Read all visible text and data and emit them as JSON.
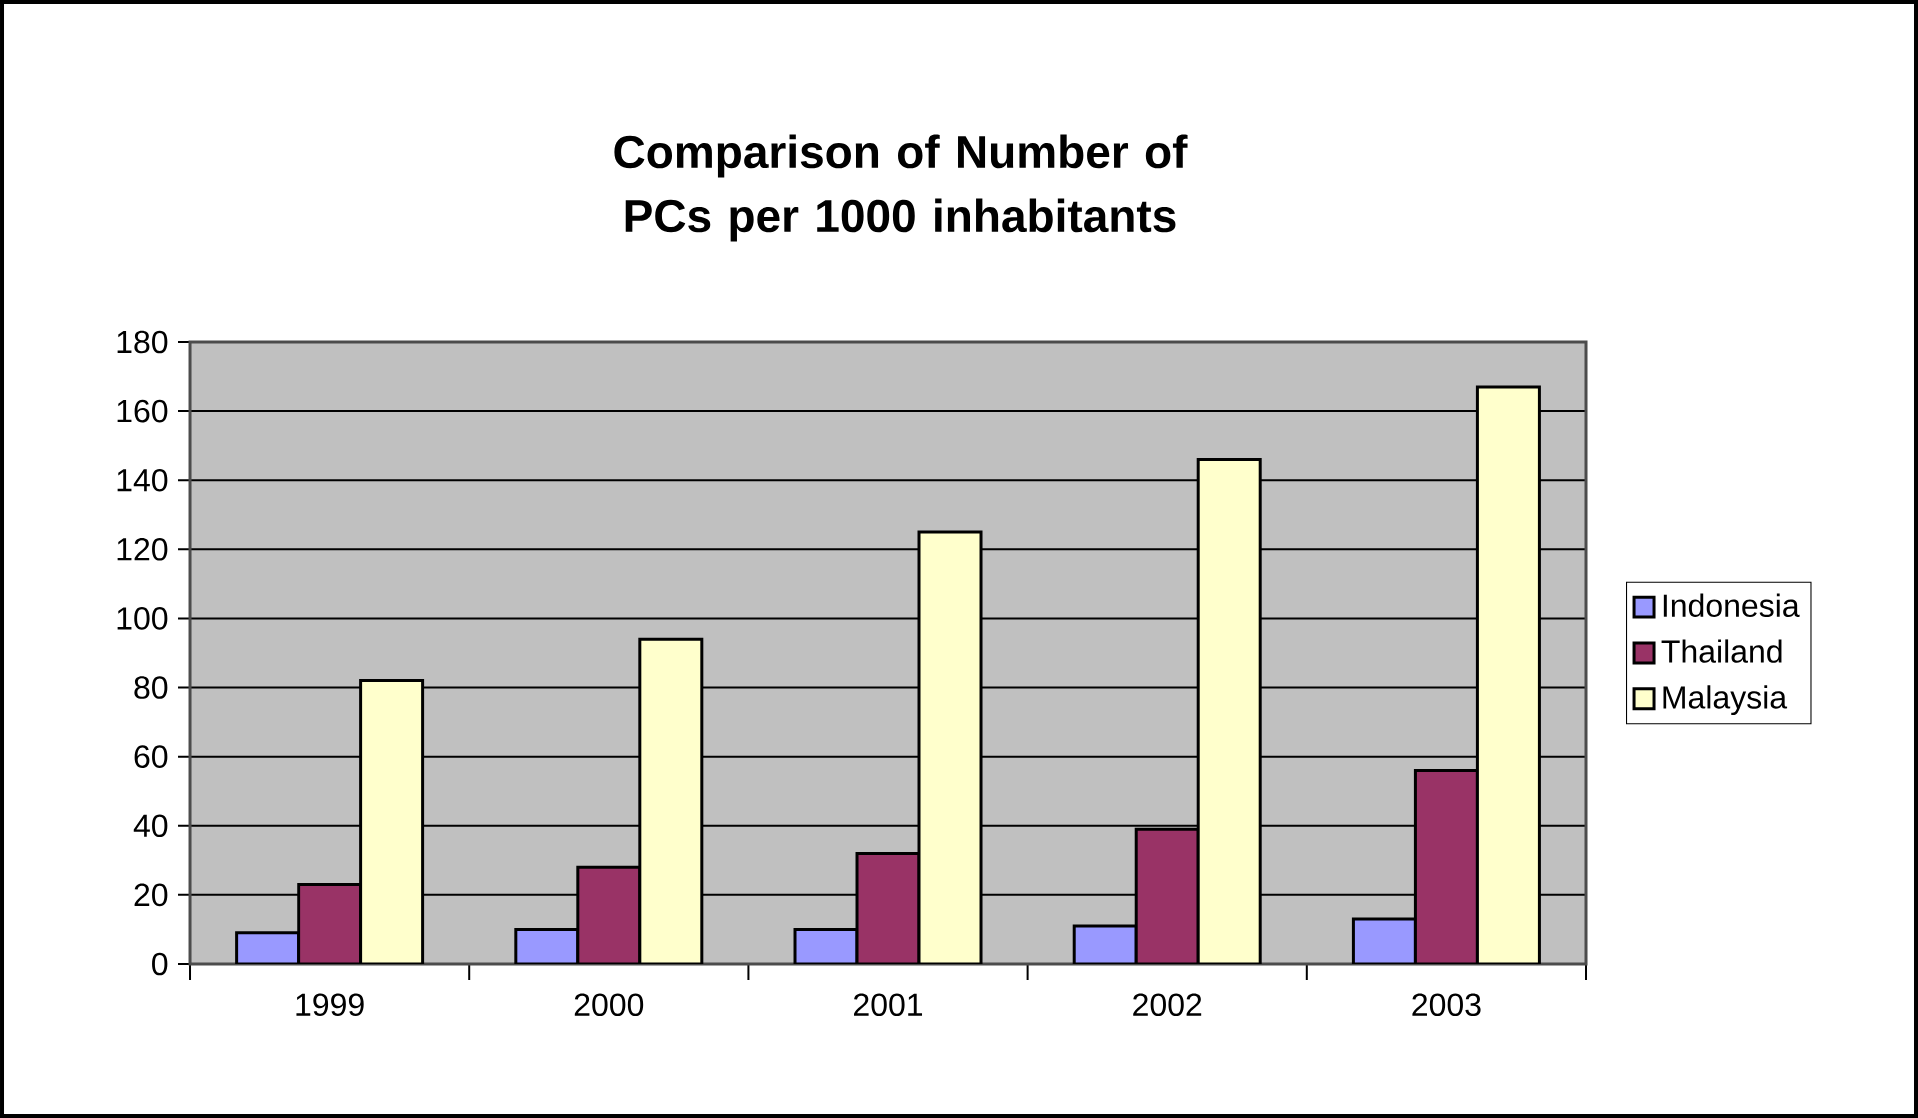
{
  "chart_data": {
    "type": "bar",
    "title": "Comparison of Number of PCs per 1000 inhabitants",
    "categories": [
      "1999",
      "2000",
      "2001",
      "2002",
      "2003"
    ],
    "series": [
      {
        "name": "Indonesia",
        "color": "#9999ff",
        "values": [
          9,
          10,
          10,
          11,
          13
        ]
      },
      {
        "name": "Thailand",
        "color": "#993366",
        "values": [
          23,
          28,
          32,
          39,
          56
        ]
      },
      {
        "name": "Malaysia",
        "color": "#ffffcc",
        "values": [
          82,
          94,
          125,
          146,
          167
        ]
      }
    ],
    "ylim": [
      0,
      180
    ],
    "yticks": [
      0,
      20,
      40,
      60,
      80,
      100,
      120,
      140,
      160,
      180
    ],
    "grid": "y",
    "legend": "right"
  }
}
